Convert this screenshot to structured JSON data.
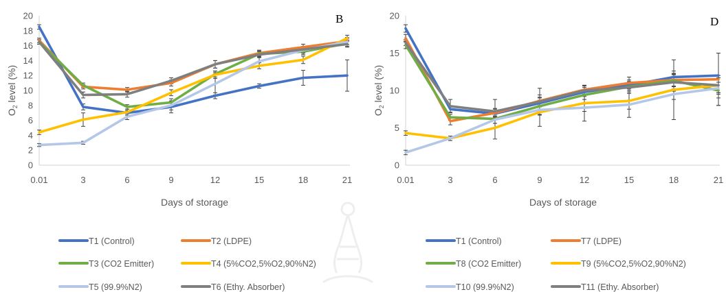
{
  "chart_data": [
    {
      "type": "line",
      "panel_label": "B",
      "x": [
        "0.01",
        "3",
        "6",
        "9",
        "12",
        "15",
        "18",
        "21"
      ],
      "xlabel": "Days of storage",
      "ylabel": "O2 level (%)",
      "ylim": [
        0,
        20
      ],
      "yticks": [
        "0",
        "2",
        "4",
        "6",
        "8",
        "10",
        "12",
        "14",
        "16",
        "18",
        "20"
      ],
      "grid": false,
      "legend_position": "bottom",
      "series": [
        {
          "name": "T1 (Control)",
          "color": "#4472C4",
          "values": [
            18.5,
            7.8,
            7.0,
            7.8,
            9.3,
            10.6,
            11.7,
            12.0
          ],
          "errors": [
            0.3,
            0.4,
            0.3,
            0.8,
            0.4,
            0.3,
            1.0,
            2.1
          ]
        },
        {
          "name": "T2 (LDPE)",
          "color": "#ED7D31",
          "values": [
            16.7,
            10.5,
            10.1,
            11.0,
            13.5,
            15.0,
            15.8,
            16.6
          ],
          "errors": [
            0.3,
            0.3,
            0.3,
            0.4,
            0.5,
            0.4,
            0.4,
            0.5
          ]
        },
        {
          "name": "T3 (CO2 Emitter)",
          "color": "#70AD47",
          "values": [
            16.5,
            10.7,
            7.8,
            8.4,
            12.2,
            14.9,
            15.2,
            16.3
          ],
          "errors": [
            0.3,
            0.3,
            0.3,
            0.5,
            0.4,
            0.4,
            0.4,
            0.4
          ]
        },
        {
          "name": "T4 (5%CO2,5%O2,90%N2)",
          "color": "#FFC000",
          "values": [
            4.4,
            6.1,
            7.1,
            9.7,
            12.1,
            13.3,
            14.1,
            17.0
          ],
          "errors": [
            0.3,
            0.9,
            0.4,
            0.4,
            0.5,
            0.4,
            0.5,
            0.4
          ]
        },
        {
          "name": "T5 (99.9%N2)",
          "color": "#B4C7E7",
          "values": [
            2.7,
            3.0,
            6.5,
            8.0,
            10.9,
            13.9,
            15.4,
            16.5
          ],
          "errors": [
            0.2,
            0.2,
            0.4,
            0.6,
            1.5,
            0.6,
            0.4,
            0.4
          ]
        },
        {
          "name": "T6 (Ethy. Absorber)",
          "color": "#7F7F7F",
          "values": [
            16.5,
            9.4,
            9.5,
            11.3,
            13.5,
            14.8,
            15.5,
            16.2
          ],
          "errors": [
            0.3,
            0.4,
            0.4,
            0.4,
            0.5,
            0.4,
            0.4,
            0.4
          ]
        }
      ]
    },
    {
      "type": "line",
      "panel_label": "D",
      "x": [
        "0.01",
        "3",
        "6",
        "9",
        "12",
        "15",
        "18",
        "21"
      ],
      "xlabel": "Days of storage",
      "ylabel": "O2 level (%)",
      "ylim": [
        0,
        20
      ],
      "yticks": [
        "0",
        "5",
        "10",
        "15",
        "20"
      ],
      "grid": false,
      "legend_position": "bottom",
      "series": [
        {
          "name": "T1 (Control)",
          "color": "#4472C4",
          "values": [
            18.3,
            7.5,
            6.9,
            8.3,
            9.8,
            10.7,
            11.8,
            12.0
          ],
          "errors": [
            0.5,
            0.4,
            0.6,
            0.8,
            0.6,
            0.7,
            0.8,
            3.0
          ]
        },
        {
          "name": "T7 (LDPE)",
          "color": "#ED7D31",
          "values": [
            17.0,
            5.9,
            7.0,
            8.6,
            10.1,
            11.0,
            11.4,
            11.5
          ],
          "errors": [
            0.5,
            0.5,
            0.6,
            0.8,
            0.6,
            0.8,
            0.8,
            3.5
          ]
        },
        {
          "name": "T8 (CO2 Emitter)",
          "color": "#70AD47",
          "values": [
            16.1,
            6.4,
            6.2,
            7.9,
            9.4,
            10.5,
            11.3,
            10.0
          ],
          "errors": [
            0.5,
            0.4,
            0.6,
            0.8,
            0.6,
            0.7,
            0.8,
            2.0
          ]
        },
        {
          "name": "T9 (5%CO2,5%O2,90%N2)",
          "color": "#FFC000",
          "values": [
            4.3,
            3.6,
            5.0,
            7.1,
            8.3,
            8.6,
            10.1,
            10.7
          ],
          "errors": [
            0.3,
            0.3,
            1.5,
            1.9,
            2.4,
            2.2,
            4.0,
            1.0
          ]
        },
        {
          "name": "T10 (99.9%N2)",
          "color": "#B4C7E7",
          "values": [
            1.7,
            3.6,
            6.1,
            7.4,
            7.7,
            8.1,
            9.5,
            10.3
          ],
          "errors": [
            0.3,
            0.3,
            0.5,
            0.6,
            0.5,
            0.6,
            0.7,
            0.8
          ]
        },
        {
          "name": "T11 (Ethy. Absorber)",
          "color": "#7F7F7F",
          "values": [
            16.4,
            7.9,
            7.2,
            8.5,
            10.0,
            10.4,
            11.1,
            10.7
          ],
          "errors": [
            0.4,
            0.9,
            1.6,
            1.8,
            0.6,
            0.8,
            1.2,
            1.0
          ]
        }
      ]
    }
  ],
  "axis_color": "#D9D9D9",
  "text_color": "#595959"
}
